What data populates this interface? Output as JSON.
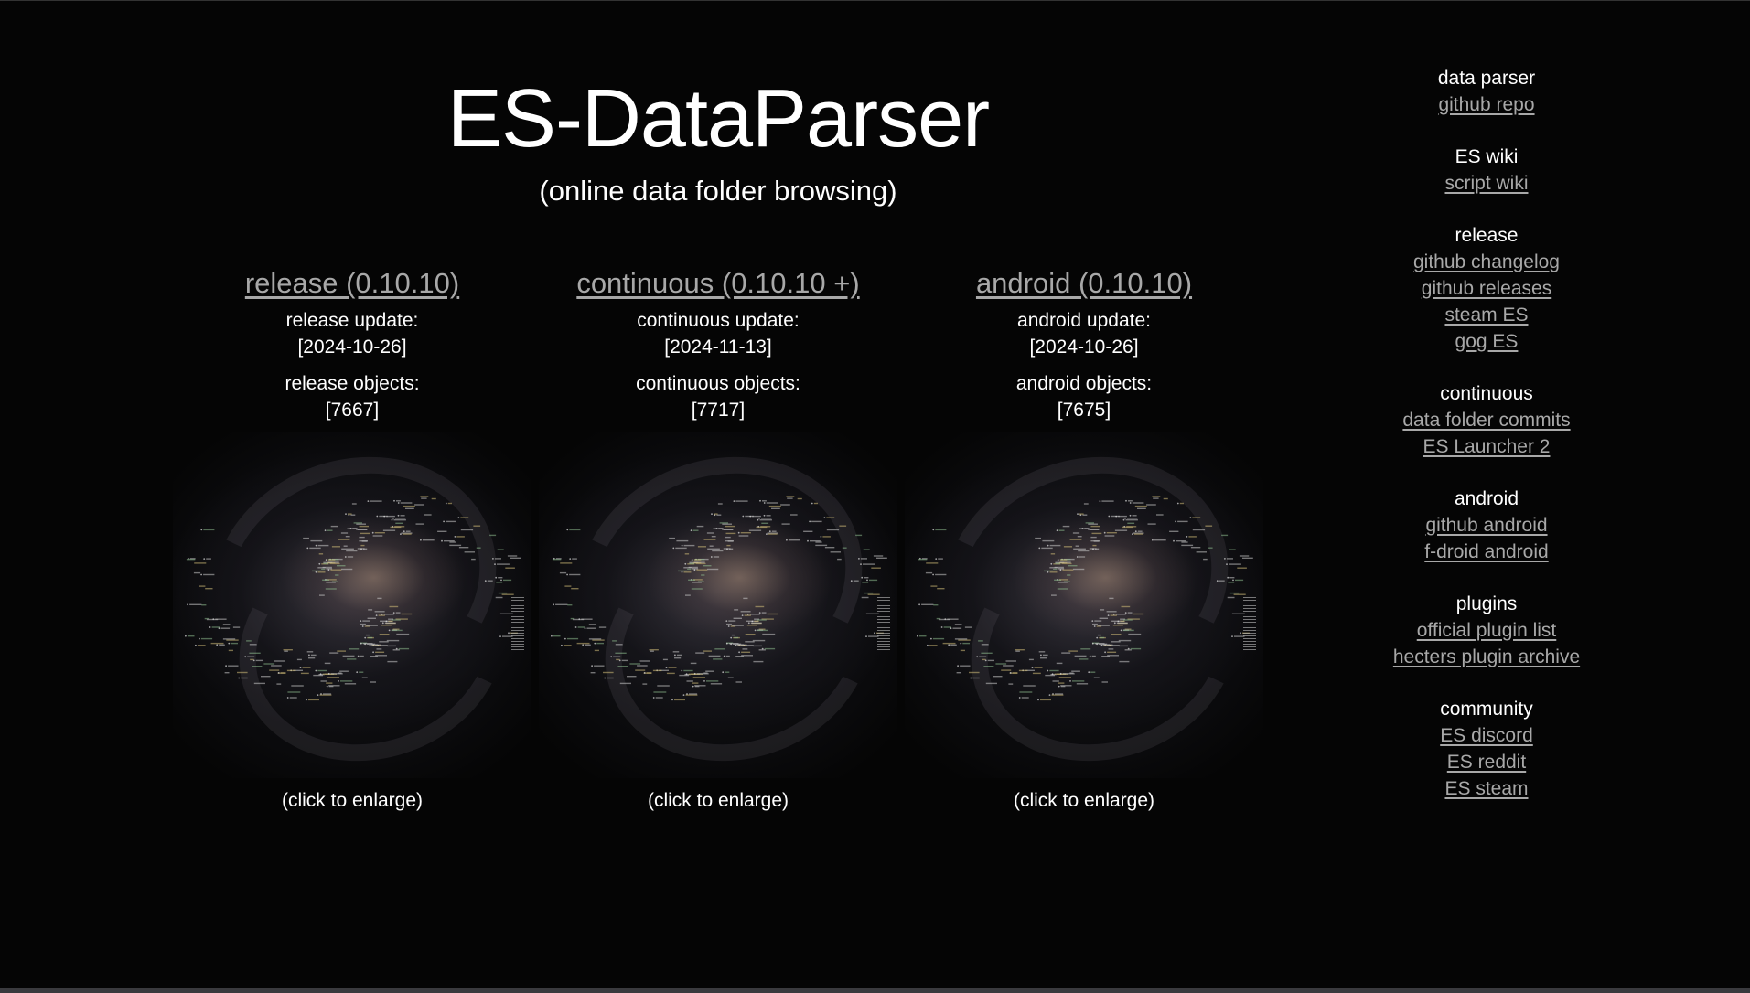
{
  "header": {
    "title": "ES-DataParser",
    "subtitle": "(online data folder browsing)"
  },
  "columns": [
    {
      "heading": "release (0.10.10)",
      "update_label": "release update:",
      "update_value": "[2024-10-26]",
      "objects_label": "release objects:",
      "objects_value": "[7667]",
      "enlarge_note": "(click to enlarge)"
    },
    {
      "heading": "continuous (0.10.10 +)",
      "update_label": "continuous update:",
      "update_value": "[2024-11-13]",
      "objects_label": "continuous objects:",
      "objects_value": "[7717]",
      "enlarge_note": "(click to enlarge)"
    },
    {
      "heading": "android (0.10.10)",
      "update_label": "android update:",
      "update_value": "[2024-10-26]",
      "objects_label": "android objects:",
      "objects_value": "[7675]",
      "enlarge_note": "(click to enlarge)"
    }
  ],
  "sidebar": {
    "groups": [
      {
        "header": "data parser",
        "links": [
          "github repo"
        ]
      },
      {
        "header": "ES wiki",
        "links": [
          "script wiki"
        ]
      },
      {
        "header": "release",
        "links": [
          "github changelog",
          "github releases",
          "steam ES",
          "gog ES"
        ]
      },
      {
        "header": "continuous",
        "links": [
          "data folder commits",
          "ES Launcher 2"
        ]
      },
      {
        "header": "android",
        "links": [
          "github android",
          "f-droid android"
        ]
      },
      {
        "header": "plugins",
        "links": [
          "official plugin list",
          "hecters plugin archive"
        ]
      },
      {
        "header": "community",
        "links": [
          "ES discord",
          "ES reddit",
          "ES steam"
        ]
      }
    ]
  },
  "colors": {
    "background": "#050505",
    "text": "#ffffff",
    "link": "#a8a8a8"
  }
}
